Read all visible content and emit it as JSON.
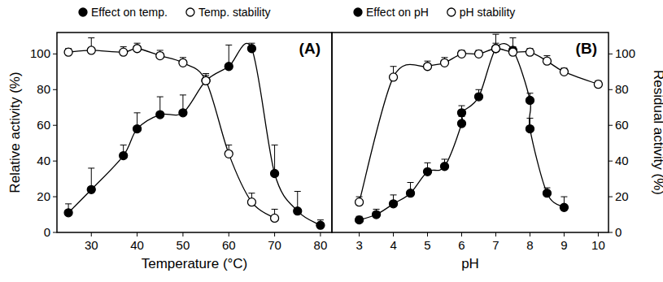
{
  "chart_data": [
    {
      "type": "line",
      "annotation": "(A)",
      "x_label": "Temperature (°C)",
      "y_label": "Relative activity (%)",
      "xlim": [
        22.5,
        82.5
      ],
      "xticks": [
        30,
        40,
        50,
        60,
        70,
        80
      ],
      "ylim": [
        0,
        112
      ],
      "yticks": [
        0,
        20,
        40,
        60,
        80,
        100
      ],
      "legend": "top",
      "series": [
        {
          "name": "Effect on temp.",
          "color": "#000000",
          "marker": "filled",
          "line_style": "solid",
          "x": [
            25,
            30,
            37,
            40,
            45,
            50,
            55,
            60,
            65,
            70,
            75,
            80
          ],
          "values": [
            11,
            24,
            43,
            58,
            66,
            67,
            85,
            93,
            103,
            33,
            12,
            4
          ],
          "errors": [
            5,
            12,
            6,
            9,
            10,
            10,
            4,
            12,
            3,
            16,
            11,
            3
          ]
        },
        {
          "name": "Temp. stability",
          "color": "#000000",
          "marker": "open",
          "line_style": "solid",
          "x": [
            25,
            30,
            37,
            40,
            45,
            50,
            55,
            60,
            65,
            70
          ],
          "values": [
            101,
            102,
            101,
            103,
            99,
            95,
            85,
            44,
            17,
            8
          ],
          "errors": [
            2,
            7,
            3,
            3,
            3,
            3,
            3,
            5,
            5,
            5
          ]
        }
      ]
    },
    {
      "type": "line",
      "annotation": "(B)",
      "x_label": "pH",
      "y2_label": "Residual activity (%)",
      "xlim": [
        2.2,
        10.3
      ],
      "xticks": [
        3,
        4,
        5,
        6,
        7,
        8,
        9,
        10
      ],
      "y2lim": [
        0,
        112
      ],
      "y2ticks": [
        0,
        20,
        40,
        60,
        80,
        100
      ],
      "legend": "top",
      "series": [
        {
          "name": "Effect on pH",
          "color": "#000000",
          "marker": "filled",
          "line_style": "solid",
          "axis": "y2",
          "x": [
            3,
            3.5,
            4,
            4.5,
            5,
            5.5,
            6,
            6,
            6.5,
            7,
            7.5,
            8,
            8,
            8.5,
            9
          ],
          "values": [
            7,
            10,
            16,
            22,
            34,
            37,
            61,
            67,
            76,
            103,
            102,
            74,
            58,
            22,
            14
          ],
          "errors": [
            2,
            3,
            5,
            6,
            5,
            4,
            4,
            4,
            4,
            8,
            7,
            4,
            6,
            3,
            6
          ]
        },
        {
          "name": "pH stability",
          "color": "#000000",
          "marker": "open",
          "line_style": "solid",
          "axis": "y2",
          "x": [
            3,
            4,
            5,
            5.5,
            6,
            6.5,
            7,
            7.5,
            8,
            8.5,
            9,
            10
          ],
          "values": [
            17,
            87,
            93,
            95,
            100,
            100,
            103,
            101,
            101,
            96,
            90,
            83
          ],
          "errors": [
            3,
            6,
            3,
            3,
            2,
            2,
            3,
            3,
            2,
            3,
            2,
            2
          ]
        }
      ]
    }
  ]
}
